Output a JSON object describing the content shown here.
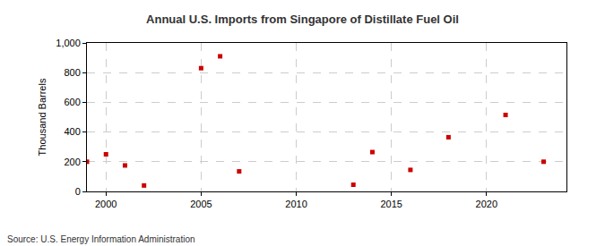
{
  "chart_data": {
    "type": "scatter",
    "title": "Annual U.S. Imports from Singapore of Distillate Fuel Oil",
    "y_label": "Thousand Barrels",
    "annotations": [
      "Source: U.S. Energy Information Administration"
    ],
    "x": [
      1999,
      2000,
      2001,
      2002,
      2005,
      2006,
      2007,
      2013,
      2014,
      2016,
      2018,
      2021,
      2023
    ],
    "values": [
      200,
      250,
      175,
      40,
      830,
      910,
      135,
      45,
      265,
      145,
      365,
      515,
      200
    ],
    "color": "#cc0000",
    "marker": "square",
    "xlim": [
      1999,
      2024.2
    ],
    "xticks": [
      2000,
      2005,
      2010,
      2015,
      2020
    ],
    "ylim": [
      0,
      1000
    ],
    "yticks": [
      0,
      200,
      400,
      600,
      800,
      {
        "value": 1000,
        "label": "1,000"
      }
    ],
    "grid": true
  }
}
